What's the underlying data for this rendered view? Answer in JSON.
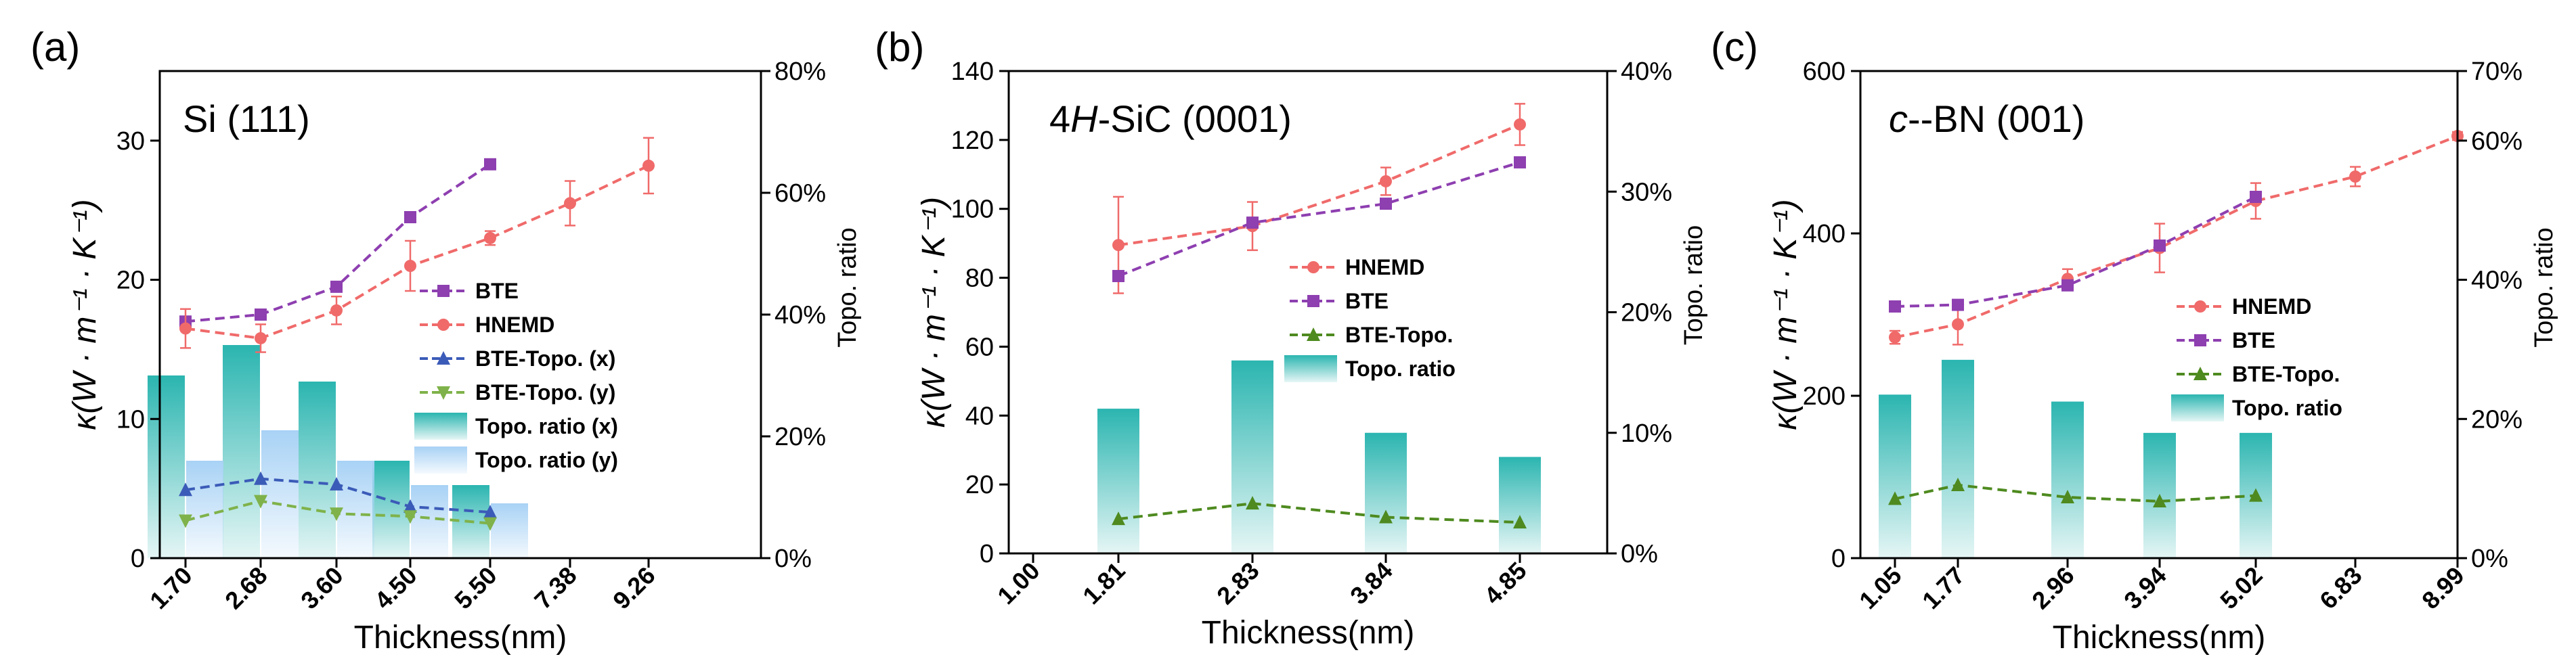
{
  "colors": {
    "hnemd": "#F06A6A",
    "bte": "#8E3FB0",
    "bte_topo_x": "#3B5BB8",
    "bte_topo_y": "#7FB24A",
    "bte_topo": "#4E8A1F",
    "teal": "#2BB5B0",
    "light_blue": "#A8D2F5"
  },
  "chart_data": [
    {
      "type": "bar+line",
      "panel": "(a)",
      "title": "Si (111)",
      "xlabel": "Thickness(nm)",
      "ylabel": "κ(W · m⁻¹ · K⁻¹)",
      "ylabel_right": "Topo. ratio",
      "x_ticks": [
        "1.70",
        "2.68",
        "3.60",
        "4.50",
        "5.50",
        "7.38",
        "9.26"
      ],
      "ylim": [
        0,
        35
      ],
      "y_ticks": [
        "0",
        "10",
        "20",
        "30"
      ],
      "y2lim": [
        0,
        80
      ],
      "y2_ticks": [
        "0%",
        "20%",
        "40%",
        "60%",
        "80%"
      ],
      "series": [
        {
          "name": "BTE",
          "key": "bte",
          "kind": "line",
          "marker": "square",
          "x": [
            1.7,
            2.68,
            3.6,
            4.5,
            5.5
          ],
          "values": [
            17.0,
            17.5,
            19.5,
            24.5,
            28.3
          ]
        },
        {
          "name": "HNEMD",
          "key": "hnemd",
          "kind": "line",
          "marker": "circle",
          "x": [
            1.7,
            2.68,
            3.6,
            4.5,
            5.5,
            7.38,
            9.26
          ],
          "values": [
            16.5,
            15.8,
            17.8,
            21.0,
            23.0,
            25.5,
            28.2
          ],
          "errors": [
            1.4,
            1.0,
            1.0,
            1.8,
            0.5,
            1.6,
            2.0
          ]
        },
        {
          "name": "BTE-Topo. (x)",
          "key": "bte_topo_x",
          "kind": "line",
          "marker": "triangle-up",
          "x": [
            1.7,
            2.68,
            3.6,
            4.5,
            5.5
          ],
          "values": [
            4.9,
            5.7,
            5.3,
            3.7,
            3.3
          ]
        },
        {
          "name": "BTE-Topo. (y)",
          "key": "bte_topo_y",
          "kind": "line",
          "marker": "triangle-down",
          "x": [
            1.7,
            2.68,
            3.6,
            4.5,
            5.5
          ],
          "values": [
            2.7,
            4.1,
            3.2,
            3.0,
            2.5
          ]
        },
        {
          "name": "Topo. ratio (x)",
          "key": "teal",
          "kind": "bar",
          "axis": "right",
          "slot": 0,
          "x": [
            1.7,
            2.68,
            3.6,
            4.5,
            5.5
          ],
          "values": [
            30,
            35,
            29,
            16,
            12
          ]
        },
        {
          "name": "Topo. ratio (y)",
          "key": "light_blue",
          "kind": "bar",
          "axis": "right",
          "slot": 1,
          "x": [
            1.7,
            2.68,
            3.6,
            4.5,
            5.5
          ],
          "values": [
            16,
            21,
            16,
            12,
            9
          ]
        }
      ]
    },
    {
      "type": "bar+line",
      "panel": "(b)",
      "title_pre": "4",
      "title_it": "H",
      "title_post": "-SiC (0001)",
      "xlabel": "Thickness(nm)",
      "ylabel": "κ(W · m⁻¹ · K⁻¹)",
      "ylabel_right": "Topo. ratio",
      "x_ticks": [
        "1.00",
        "1.81",
        "2.83",
        "3.84",
        "4.85"
      ],
      "ylim": [
        0,
        140
      ],
      "y_ticks": [
        "0",
        "20",
        "40",
        "60",
        "80",
        "100",
        "120",
        "140"
      ],
      "y2lim": [
        0,
        40
      ],
      "y2_ticks": [
        "0%",
        "10%",
        "20%",
        "30%",
        "40%"
      ],
      "series": [
        {
          "name": "HNEMD",
          "key": "hnemd",
          "kind": "line",
          "marker": "circle",
          "x": [
            1.81,
            2.83,
            3.84,
            4.85
          ],
          "values": [
            89.5,
            95.0,
            108.0,
            124.5
          ],
          "errors": [
            14,
            7,
            4,
            6
          ]
        },
        {
          "name": "BTE",
          "key": "bte",
          "kind": "line",
          "marker": "square",
          "x": [
            1.81,
            2.83,
            3.84,
            4.85
          ],
          "values": [
            80.5,
            96.0,
            101.5,
            113.5
          ]
        },
        {
          "name": "BTE-Topo.",
          "key": "bte_topo",
          "kind": "line",
          "marker": "triangle-up",
          "x": [
            1.81,
            2.83,
            3.84,
            4.85
          ],
          "values": [
            10.0,
            14.5,
            10.5,
            9.0
          ]
        },
        {
          "name": "Topo. ratio",
          "key": "teal",
          "kind": "bar",
          "axis": "right",
          "slot": -1,
          "x": [
            1.81,
            2.83,
            3.84,
            4.85
          ],
          "values": [
            12,
            16,
            10,
            8
          ]
        }
      ]
    },
    {
      "type": "bar+line",
      "panel": "(c)",
      "title_it": "c",
      "title_post": "--BN (001)",
      "xlabel": "Thickness(nm)",
      "ylabel": "κ(W · m⁻¹ · K⁻¹)",
      "ylabel_right": "Topo. ratio",
      "x_ticks": [
        "1.05",
        "1.77",
        "2.96",
        "3.94",
        "5.02",
        "6.83",
        "8.99"
      ],
      "ylim": [
        0,
        600
      ],
      "y_ticks": [
        "0",
        "200",
        "400",
        "600"
      ],
      "y2lim": [
        0,
        70
      ],
      "y2_ticks": [
        "0%",
        "20%",
        "40%",
        "60%",
        "70%"
      ],
      "series": [
        {
          "name": "HNEMD",
          "key": "hnemd",
          "kind": "line",
          "marker": "circle",
          "x": [
            1.05,
            1.77,
            2.96,
            3.94,
            5.02,
            6.83,
            8.99
          ],
          "values": [
            272,
            288,
            344,
            382,
            440,
            470,
            520
          ],
          "errors": [
            8,
            25,
            12,
            30,
            22,
            12,
            5
          ]
        },
        {
          "name": "BTE",
          "key": "bte",
          "kind": "line",
          "marker": "square",
          "x": [
            1.05,
            1.77,
            2.96,
            3.94,
            5.02
          ],
          "values": [
            310,
            312,
            336,
            385,
            445
          ]
        },
        {
          "name": "BTE-Topo.",
          "key": "bte_topo",
          "kind": "line",
          "marker": "triangle-up",
          "x": [
            1.05,
            1.77,
            2.96,
            3.94,
            5.02
          ],
          "values": [
            73,
            90,
            75,
            70,
            77
          ]
        },
        {
          "name": "Topo. ratio",
          "key": "teal",
          "kind": "bar",
          "axis": "right",
          "slot": -1,
          "x": [
            1.05,
            1.77,
            2.96,
            3.94,
            5.02
          ],
          "values": [
            23.5,
            28.5,
            22.5,
            18,
            18
          ]
        }
      ]
    }
  ]
}
